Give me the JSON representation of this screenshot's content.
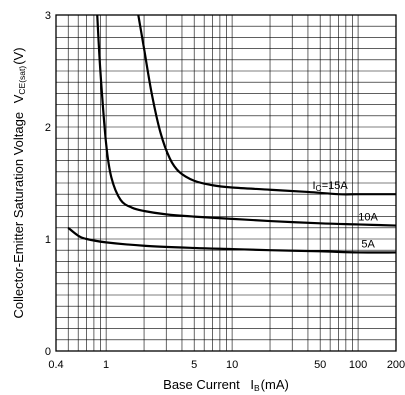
{
  "chart_data": {
    "type": "line",
    "xscale": "log",
    "xlim": [
      0.4,
      200
    ],
    "ylim": [
      0,
      3
    ],
    "x_ticks": [
      0.4,
      1,
      5,
      10,
      50,
      100,
      200
    ],
    "x_tick_labels": [
      "0.4",
      "1",
      "5",
      "10",
      "50",
      "100",
      "200"
    ],
    "y_ticks": [
      0,
      1,
      2,
      3
    ],
    "y_tick_labels": [
      "0",
      "1",
      "2",
      "3"
    ],
    "grid": true,
    "xlabel": {
      "prefix": "Base Current",
      "symbol": "I",
      "sub": "B",
      "unit": "(mA)"
    },
    "ylabel": {
      "prefix": "Collector-Emitter Saturation Voltage",
      "symbol": "V",
      "sub": "CE(sat)",
      "unit": "(V)"
    },
    "series": [
      {
        "label": {
          "symbol": "I",
          "sub": "C",
          "text": "=15A"
        },
        "x": [
          1.8,
          2.0,
          2.3,
          2.7,
          3.2,
          3.8,
          5,
          7,
          10,
          20,
          40,
          70,
          100,
          150,
          200
        ],
        "y": [
          3.0,
          2.7,
          2.3,
          1.95,
          1.72,
          1.6,
          1.52,
          1.48,
          1.46,
          1.44,
          1.42,
          1.4,
          1.4,
          1.4,
          1.4
        ]
      },
      {
        "label": {
          "symbol": "",
          "sub": "",
          "text": "10A"
        },
        "x": [
          0.85,
          0.9,
          1.0,
          1.1,
          1.3,
          1.6,
          2.0,
          3.0,
          5,
          10,
          20,
          50,
          100,
          200
        ],
        "y": [
          3.0,
          2.5,
          1.85,
          1.55,
          1.35,
          1.28,
          1.25,
          1.22,
          1.2,
          1.18,
          1.16,
          1.14,
          1.13,
          1.12
        ]
      },
      {
        "label": {
          "symbol": "",
          "sub": "",
          "text": "5A"
        },
        "x": [
          0.5,
          0.6,
          0.7,
          1.0,
          2.0,
          5,
          10,
          20,
          50,
          100,
          200
        ],
        "y": [
          1.1,
          1.03,
          1.0,
          0.97,
          0.94,
          0.92,
          0.91,
          0.9,
          0.89,
          0.88,
          0.88
        ]
      }
    ]
  }
}
